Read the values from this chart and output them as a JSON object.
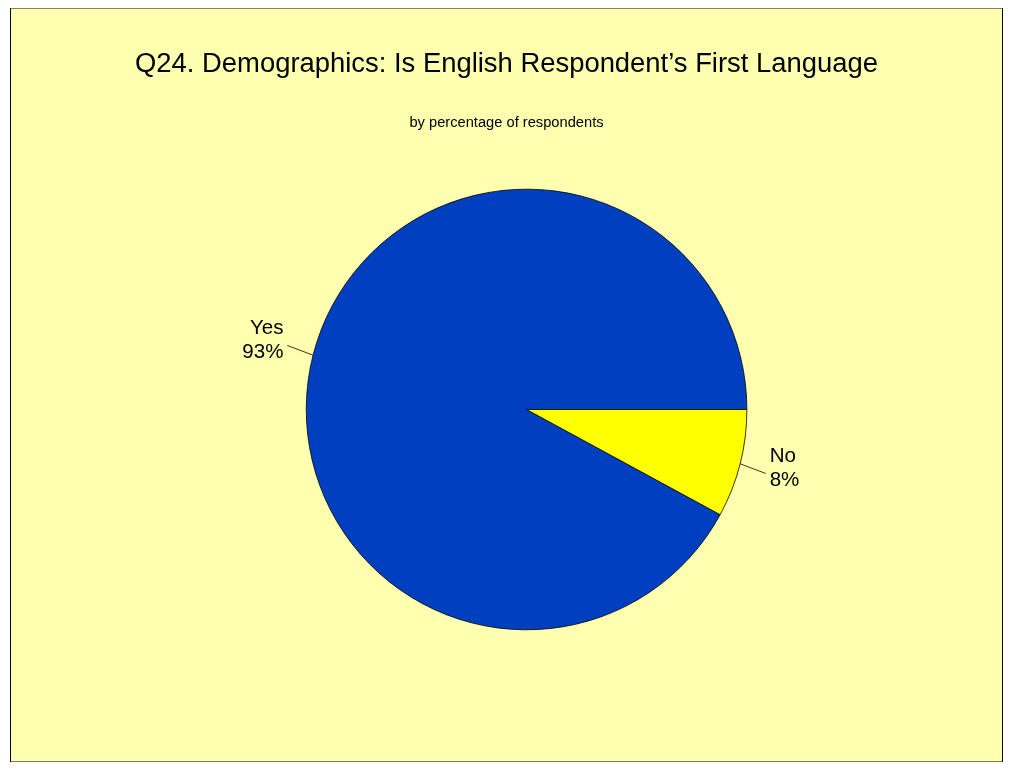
{
  "chart_data": {
    "type": "pie",
    "title": "Q24. Demographics: Is English Respondent’s First Language",
    "subtitle": "by percentage of respondents",
    "categories": [
      "Yes",
      "No"
    ],
    "values": [
      93,
      8
    ],
    "colors": [
      "#0040c0",
      "#ffff00"
    ],
    "value_labels": [
      "93%",
      "8%"
    ]
  }
}
